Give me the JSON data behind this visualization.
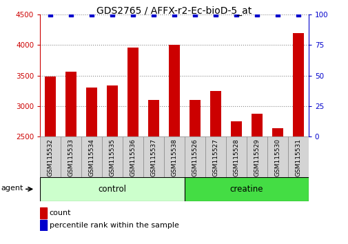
{
  "title": "GDS2765 / AFFX-r2-Ec-bioD-5_at",
  "samples": [
    "GSM115532",
    "GSM115533",
    "GSM115534",
    "GSM115535",
    "GSM115536",
    "GSM115537",
    "GSM115538",
    "GSM115526",
    "GSM115527",
    "GSM115528",
    "GSM115529",
    "GSM115530",
    "GSM115531"
  ],
  "counts": [
    3490,
    3560,
    3310,
    3340,
    3960,
    3100,
    4000,
    3100,
    3250,
    2750,
    2880,
    2640,
    4200
  ],
  "percentile_ranks": [
    100,
    100,
    100,
    100,
    100,
    100,
    100,
    100,
    100,
    100,
    100,
    100,
    100
  ],
  "bar_color": "#cc0000",
  "dot_color": "#0000cc",
  "ylim_left": [
    2500,
    4500
  ],
  "ylim_right": [
    0,
    100
  ],
  "yticks_left": [
    2500,
    3000,
    3500,
    4000,
    4500
  ],
  "yticks_right": [
    0,
    25,
    50,
    75,
    100
  ],
  "groups": [
    {
      "label": "control",
      "start": 0,
      "end": 6,
      "color": "#ccffcc"
    },
    {
      "label": "creatine",
      "start": 7,
      "end": 12,
      "color": "#44dd44"
    }
  ],
  "agent_label": "agent",
  "legend_count_label": "count",
  "legend_pct_label": "percentile rank within the sample",
  "grid_color": "#888888",
  "bg_color": "#ffffff",
  "tick_label_color_left": "#cc0000",
  "tick_label_color_right": "#0000cc",
  "bar_width": 0.55,
  "cell_bg_color": "#d4d4d4",
  "cell_border_color": "#888888"
}
